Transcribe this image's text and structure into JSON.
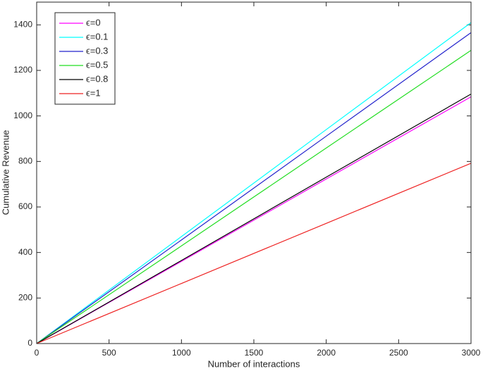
{
  "chart_data": {
    "type": "line",
    "x_label": "Number of interactions",
    "y_label": "Cumulative Revenue",
    "x": [
      0,
      1000,
      2000,
      3000
    ],
    "series": [
      {
        "name": "ϵ=0",
        "color": "#ff00ff",
        "values": [
          0,
          361,
          723,
          1084
        ]
      },
      {
        "name": "ϵ=0.1",
        "color": "#00ffff",
        "values": [
          0,
          470,
          940,
          1410
        ]
      },
      {
        "name": "ϵ=0.3",
        "color": "#2222cc",
        "values": [
          0,
          455,
          911,
          1366
        ]
      },
      {
        "name": "ϵ=0.5",
        "color": "#22dd22",
        "values": [
          0,
          429,
          859,
          1288
        ]
      },
      {
        "name": "ϵ=0.8",
        "color": "#000000",
        "values": [
          0,
          365,
          731,
          1096
        ]
      },
      {
        "name": "ϵ=1",
        "color": "#ee2222",
        "values": [
          0,
          264,
          528,
          792
        ]
      }
    ],
    "xlim": [
      0,
      3000
    ],
    "xticks": [
      0,
      500,
      1000,
      1500,
      2000,
      2500,
      3000
    ],
    "ylim": [
      0,
      1500
    ],
    "yticks": [
      0,
      200,
      400,
      600,
      800,
      1000,
      1200,
      1400
    ],
    "legend": "upper-left",
    "grid": false
  }
}
